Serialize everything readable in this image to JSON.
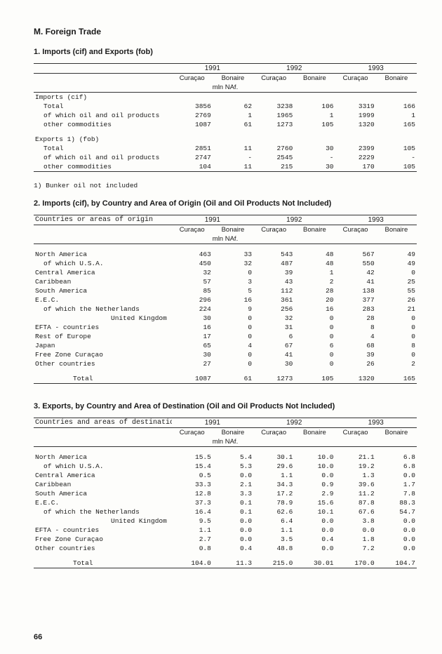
{
  "section_letter_title": "M. Foreign Trade",
  "table1": {
    "title": "1.   Imports (cif) and Exports (fob)",
    "years": [
      "1991",
      "1992",
      "1993"
    ],
    "locs": [
      "Curaçao",
      "Bonaire",
      "Curaçao",
      "Bonaire",
      "Curaçao",
      "Bonaire"
    ],
    "unit": "mln NAf.",
    "groups": [
      {
        "header": "Imports  (cif)",
        "rows": [
          {
            "label": "Total",
            "indent": 1,
            "v": [
              "3856",
              "62",
              "3238",
              "106",
              "3319",
              "166"
            ]
          },
          {
            "label": "of which oil and oil products",
            "indent": 1,
            "v": [
              "2769",
              "1",
              "1965",
              "1",
              "1999",
              "1"
            ]
          },
          {
            "label": "other commodities",
            "indent": 1,
            "v": [
              "1087",
              "61",
              "1273",
              "105",
              "1320",
              "165"
            ]
          }
        ]
      },
      {
        "header": "Exports 1) (fob)",
        "rows": [
          {
            "label": "Total",
            "indent": 1,
            "v": [
              "2851",
              "11",
              "2760",
              "30",
              "2399",
              "105"
            ]
          },
          {
            "label": "of which oil and oil products",
            "indent": 1,
            "v": [
              "2747",
              "-",
              "2545",
              "-",
              "2229",
              "-"
            ]
          },
          {
            "label": "other commodities",
            "indent": 1,
            "v": [
              "104",
              "11",
              "215",
              "30",
              "170",
              "105"
            ]
          }
        ]
      }
    ],
    "footnote": "1) Bunker oil not included"
  },
  "table2": {
    "title": "2.   Imports (cif), by Country and Area of Origin (Oil and Oil Products Not Included)",
    "row_header": "Countries or areas of origin",
    "years": [
      "1991",
      "1992",
      "1993"
    ],
    "locs": [
      "Curaçao",
      "Bonaire",
      "Curaçao",
      "Bonaire",
      "Curaçao",
      "Bonaire"
    ],
    "unit": "mln NAf.",
    "rows": [
      {
        "label": "North America",
        "indent": 0,
        "v": [
          "463",
          "33",
          "543",
          "48",
          "567",
          "49"
        ]
      },
      {
        "label": "of which U.S.A.",
        "indent": 1,
        "v": [
          "450",
          "32",
          "487",
          "48",
          "550",
          "49"
        ]
      },
      {
        "label": "Central America",
        "indent": 0,
        "v": [
          "32",
          "0",
          "39",
          "1",
          "42",
          "0"
        ]
      },
      {
        "label": "Caribbean",
        "indent": 0,
        "v": [
          "57",
          "3",
          "43",
          "2",
          "41",
          "25"
        ]
      },
      {
        "label": "South America",
        "indent": 0,
        "v": [
          "85",
          "5",
          "112",
          "28",
          "138",
          "55"
        ]
      },
      {
        "label": "E.E.C.",
        "indent": 0,
        "v": [
          "296",
          "16",
          "361",
          "20",
          "377",
          "26"
        ]
      },
      {
        "label": "of which the Netherlands",
        "indent": 1,
        "v": [
          "224",
          "9",
          "256",
          "16",
          "283",
          "21"
        ]
      },
      {
        "label": "United Kingdom",
        "indent": 4,
        "v": [
          "30",
          "0",
          "32",
          "0",
          "28",
          "0"
        ]
      },
      {
        "label": "EFTA - countries",
        "indent": 0,
        "v": [
          "16",
          "0",
          "31",
          "0",
          "8",
          "0"
        ]
      },
      {
        "label": "Rest of Europe",
        "indent": 0,
        "v": [
          "17",
          "0",
          "6",
          "0",
          "4",
          "0"
        ]
      },
      {
        "label": "Japan",
        "indent": 0,
        "v": [
          "65",
          "4",
          "67",
          "6",
          "68",
          "8"
        ]
      },
      {
        "label": "Free Zone Curaçao",
        "indent": 0,
        "v": [
          "30",
          "0",
          "41",
          "0",
          "39",
          "0"
        ]
      },
      {
        "label": "Other countries",
        "indent": 0,
        "v": [
          "27",
          "0",
          "30",
          "0",
          "26",
          "2"
        ]
      }
    ],
    "total": {
      "label": "Total",
      "v": [
        "1087",
        "61",
        "1273",
        "105",
        "1320",
        "165"
      ]
    }
  },
  "table3": {
    "title": "3.   Exports, by Country and Area of Destination (Oil and Oil Products Not Included)",
    "row_header": "Countries and areas of destination",
    "years": [
      "1991",
      "1992",
      "1993"
    ],
    "locs": [
      "Curaçao",
      "Bonaire",
      "Curaçao",
      "Bonaire",
      "Curaçao",
      "Bonaire"
    ],
    "unit": "mln NAf.",
    "rows": [
      {
        "label": "North America",
        "indent": 0,
        "v": [
          "15.5",
          "5.4",
          "30.1",
          "10.0",
          "21.1",
          "6.8"
        ]
      },
      {
        "label": "of which U.S.A.",
        "indent": 1,
        "v": [
          "15.4",
          "5.3",
          "29.6",
          "10.0",
          "19.2",
          "6.8"
        ]
      },
      {
        "label": "Central America",
        "indent": 0,
        "v": [
          "0.5",
          "0.0",
          "1.1",
          "0.0",
          "1.3",
          "0.0"
        ]
      },
      {
        "label": "Caribbean",
        "indent": 0,
        "v": [
          "33.3",
          "2.1",
          "34.3",
          "0.9",
          "39.6",
          "1.7"
        ]
      },
      {
        "label": "South America",
        "indent": 0,
        "v": [
          "12.8",
          "3.3",
          "17.2",
          "2.9",
          "11.2",
          "7.8"
        ]
      },
      {
        "label": "E.E.C.",
        "indent": 0,
        "v": [
          "37.3",
          "0.1",
          "78.9",
          "15.6",
          "87.8",
          "88.3"
        ]
      },
      {
        "label": "of which the Netherlands",
        "indent": 1,
        "v": [
          "16.4",
          "0.1",
          "62.6",
          "10.1",
          "67.6",
          "54.7"
        ]
      },
      {
        "label": "United Kingdom",
        "indent": 4,
        "v": [
          "9.5",
          "0.0",
          "6.4",
          "0.0",
          "3.8",
          "0.0"
        ]
      },
      {
        "label": "EFTA - countries",
        "indent": 0,
        "v": [
          "1.1",
          "0.0",
          "1.1",
          "0.0",
          "0.0",
          "0.0"
        ]
      },
      {
        "label": "Free Zone Curaçao",
        "indent": 0,
        "v": [
          "2.7",
          "0.0",
          "3.5",
          "0.4",
          "1.8",
          "0.0"
        ]
      },
      {
        "label": "Other countries",
        "indent": 0,
        "v": [
          "0.8",
          "0.4",
          "48.8",
          "0.0",
          "7.2",
          "0.0"
        ]
      }
    ],
    "total": {
      "label": "Total",
      "v": [
        "104.0",
        "11.3",
        "215.0",
        "30.01",
        "170.0",
        "104.7"
      ]
    }
  },
  "page_number": "66",
  "colwidths": {
    "label": "36%",
    "num": "10.66%"
  }
}
